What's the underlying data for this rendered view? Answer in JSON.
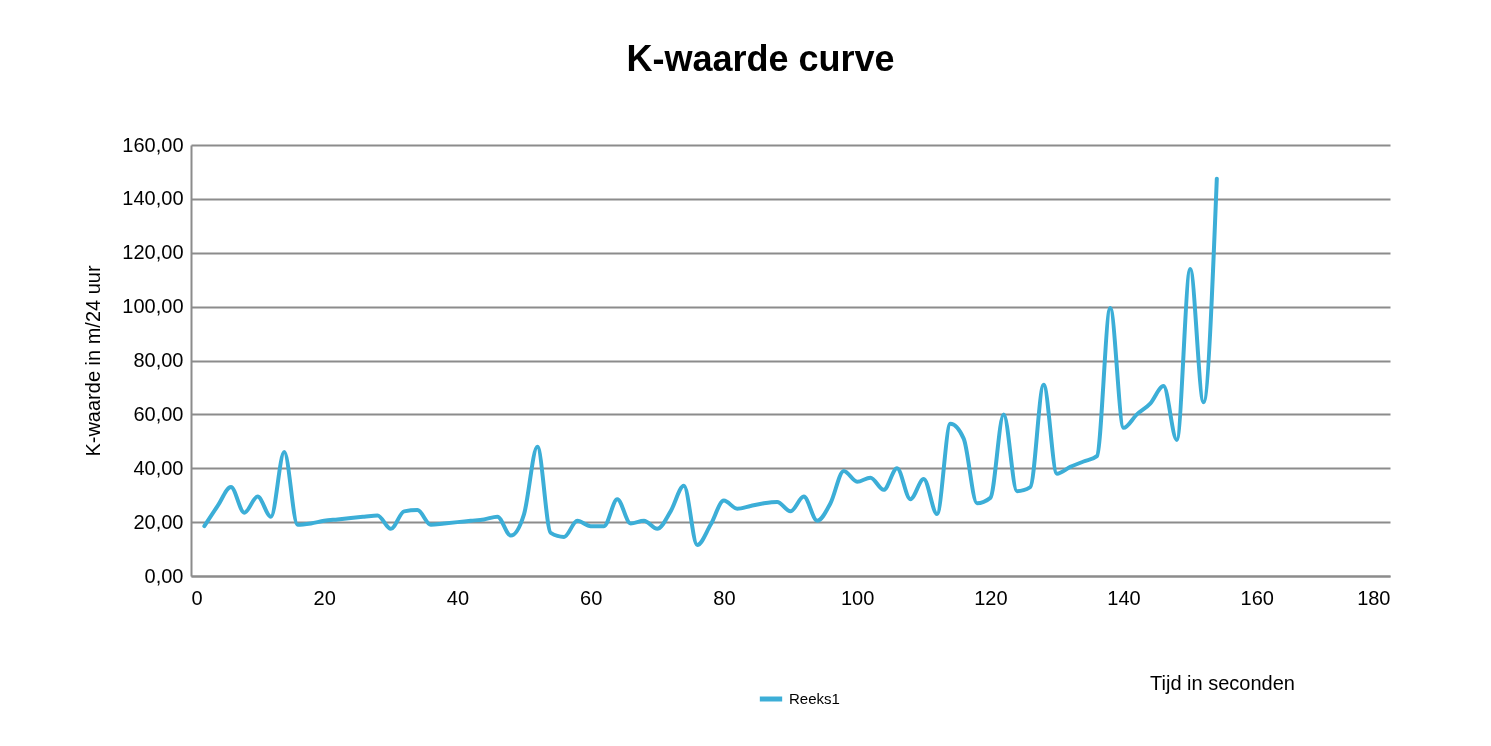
{
  "chart_data": {
    "type": "line",
    "title": "K-waarde curve",
    "xlabel": "Tijd in seconden",
    "ylabel": "K-waarde in m/24 uur",
    "x": [
      2,
      4,
      6,
      8,
      10,
      12,
      14,
      16,
      18,
      20,
      22,
      24,
      26,
      28,
      30,
      32,
      34,
      36,
      38,
      40,
      42,
      44,
      46,
      48,
      50,
      52,
      54,
      56,
      58,
      60,
      62,
      64,
      66,
      68,
      70,
      72,
      74,
      76,
      78,
      80,
      82,
      84,
      86,
      88,
      90,
      92,
      94,
      96,
      98,
      100,
      102,
      104,
      106,
      108,
      110,
      112,
      114,
      116,
      118,
      120,
      122,
      124,
      126,
      128,
      130,
      132,
      134,
      136,
      138,
      140,
      142,
      144,
      146,
      148,
      150,
      152,
      154
    ],
    "series": [
      {
        "name": "Reeks1",
        "color": "#3caed7",
        "values": [
          18.5,
          26,
          33,
          23.5,
          29.5,
          22,
          46,
          19,
          19.5,
          20.5,
          21,
          21.5,
          22,
          22.5,
          17.5,
          24,
          24.5,
          19,
          19.5,
          20,
          20.5,
          21,
          22,
          15,
          23,
          48,
          16,
          14.5,
          20.5,
          18.5,
          18.5,
          28.5,
          19.5,
          20.5,
          17.5,
          24,
          33.5,
          11.5,
          19,
          28,
          25,
          26,
          27,
          27.5,
          24,
          29.5,
          20.5,
          27,
          39,
          35,
          36.5,
          32,
          40,
          28.5,
          36,
          23,
          56.5,
          51,
          27,
          29,
          60,
          31.5,
          33,
          71,
          38,
          40.5,
          42.5,
          44.5,
          99.5,
          55,
          60,
          64,
          70.5,
          50.5,
          114,
          64.5,
          147.5
        ]
      }
    ],
    "xlim": [
      0,
      180
    ],
    "xticks": [
      0,
      20,
      40,
      60,
      80,
      100,
      120,
      140,
      160,
      180
    ],
    "ylim": [
      0,
      160
    ],
    "yticks": [
      {
        "value": 0,
        "label": "0,00"
      },
      {
        "value": 20,
        "label": "20,00"
      },
      {
        "value": 40,
        "label": "40,00"
      },
      {
        "value": 60,
        "label": "60,00"
      },
      {
        "value": 80,
        "label": "80,00"
      },
      {
        "value": 100,
        "label": "100,00"
      },
      {
        "value": 120,
        "label": "120,00"
      },
      {
        "value": 140,
        "label": "140,00"
      },
      {
        "value": 160,
        "label": "160,00"
      }
    ],
    "grid": "y",
    "legend": "bottom",
    "line_style": "solid"
  }
}
